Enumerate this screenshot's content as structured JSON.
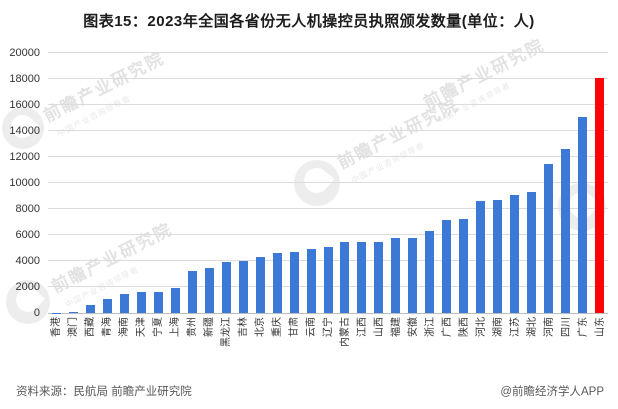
{
  "title": "图表15：2023年全国各省份无人机操控员执照颁发数量(单位：人)",
  "footer": {
    "source": "资料来源：民航局 前瞻产业研究院",
    "credit": "@前瞻经济学人APP"
  },
  "watermark": {
    "text": "前瞻产业研究院",
    "subtext": "中国产业咨询领导者"
  },
  "chart_data": {
    "type": "bar",
    "title": "图表15：2023年全国各省份无人机操控员执照颁发数量(单位：人)",
    "unit": "人",
    "categories": [
      "香港",
      "澳门",
      "西藏",
      "青海",
      "海南",
      "天津",
      "宁夏",
      "上海",
      "贵州",
      "新疆",
      "黑龙江",
      "吉林",
      "北京",
      "重庆",
      "甘肃",
      "云南",
      "辽宁",
      "内蒙古",
      "江西",
      "山西",
      "福建",
      "安徽",
      "浙江",
      "广西",
      "陕西",
      "河北",
      "湖南",
      "江苏",
      "湖北",
      "河南",
      "四川",
      "广东",
      "山东"
    ],
    "values": [
      30,
      60,
      650,
      1100,
      1500,
      1650,
      1650,
      1900,
      3200,
      3500,
      3900,
      4000,
      4300,
      4650,
      4700,
      4900,
      5100,
      5450,
      5450,
      5450,
      5750,
      5750,
      6280,
      7180,
      7230,
      8600,
      8700,
      9100,
      9300,
      11500,
      12600,
      15100,
      18100
    ],
    "highlight_index": 32,
    "bar_color": "#3c79d6",
    "highlight_color": "#f90505",
    "ylim": [
      0,
      20000
    ],
    "ytick_step": 2000,
    "grid": true,
    "legend": "none",
    "xlabel_rotation": 90
  }
}
